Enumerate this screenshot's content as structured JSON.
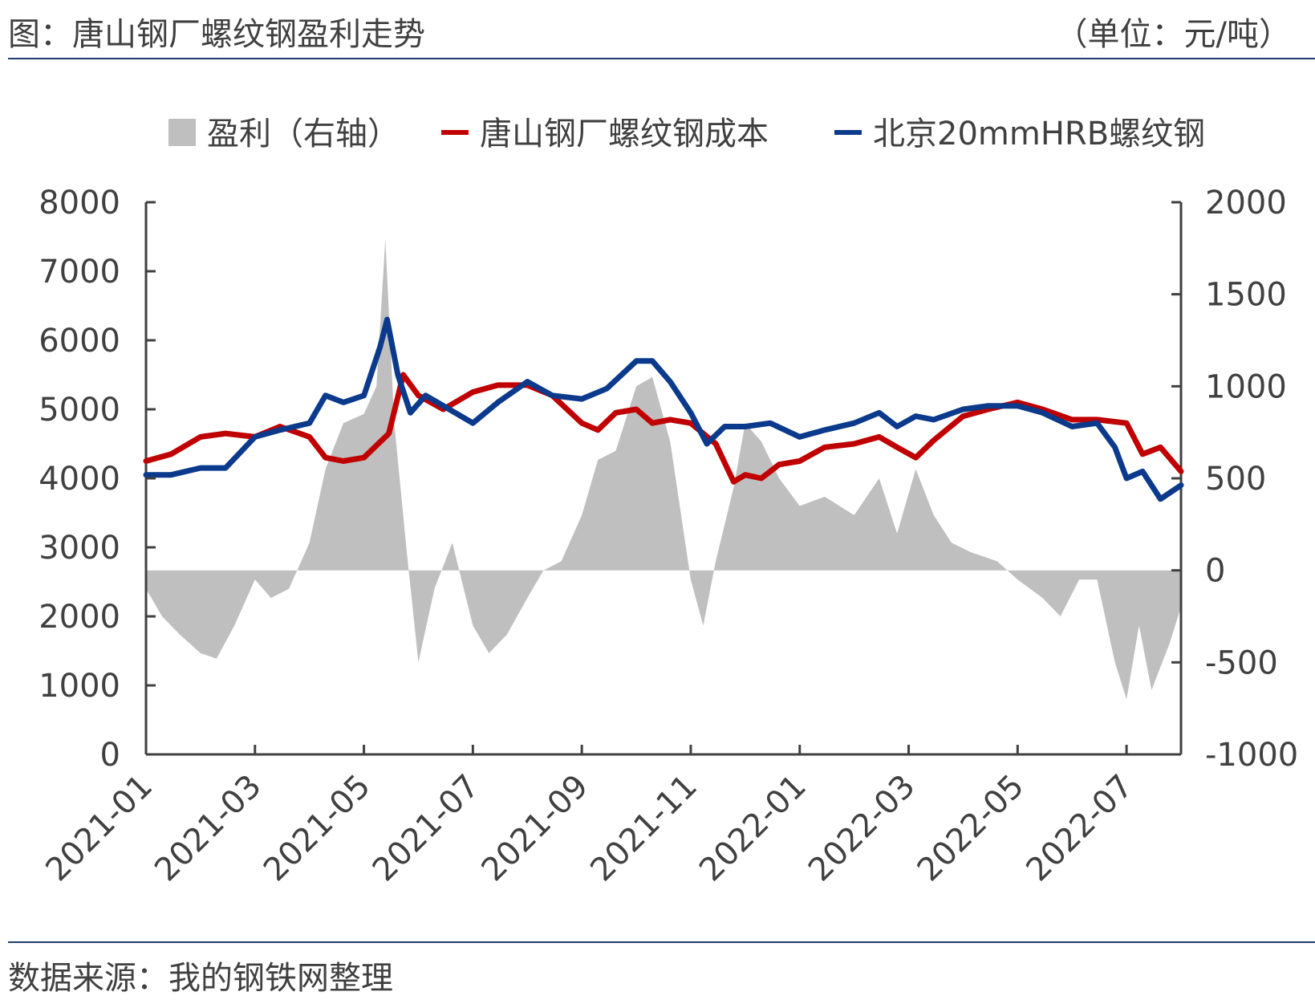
{
  "header": {
    "title": "图：唐山钢厂螺纹钢盈利走势",
    "unit": "（单位：元/吨）"
  },
  "footer": {
    "source": "数据来源：我的钢铁网整理"
  },
  "chart_data": {
    "type": "line",
    "left_axis": {
      "ylim": [
        0,
        8000
      ],
      "ticks": [
        "0",
        "1000",
        "2000",
        "3000",
        "4000",
        "5000",
        "6000",
        "7000",
        "8000"
      ]
    },
    "right_axis": {
      "ylim": [
        -1000,
        2000
      ],
      "ticks": [
        "-1000",
        "-500",
        "0",
        "500",
        "1000",
        "1500",
        "2000"
      ]
    },
    "x_ticks": [
      "2021-01",
      "2021-03",
      "2021-05",
      "2021-07",
      "2021-09",
      "2021-11",
      "2022-01",
      "2022-03",
      "2022-05",
      "2022-07"
    ],
    "x": [
      "2021-01",
      "2021-02",
      "2021-03",
      "2021-04",
      "2021-05",
      "2021-06",
      "2021-07",
      "2021-08",
      "2021-09",
      "2021-10",
      "2021-11",
      "2021-12",
      "2022-01",
      "2022-02",
      "2022-03",
      "2022-04",
      "2022-05",
      "2022-06",
      "2022-07",
      "2022-08"
    ],
    "legend": [
      {
        "name": "盈利（右轴）",
        "kind": "area",
        "color": "#bfbfbf"
      },
      {
        "name": "唐山钢厂螺纹钢成本",
        "kind": "line",
        "color": "#c00000"
      },
      {
        "name": "北京20mmHRB螺纹钢",
        "kind": "line",
        "color": "#0b3a8c"
      }
    ],
    "series": [
      {
        "name": "盈利（右轴）",
        "axis": "right",
        "type": "area",
        "color": "#bfbfbf",
        "points": [
          [
            "2021-01-01",
            -100
          ],
          [
            "2021-01-10",
            -250
          ],
          [
            "2021-01-20",
            -350
          ],
          [
            "2021-02-01",
            -450
          ],
          [
            "2021-02-10",
            -480
          ],
          [
            "2021-02-20",
            -300
          ],
          [
            "2021-03-01",
            -50
          ],
          [
            "2021-03-10",
            -150
          ],
          [
            "2021-03-20",
            -100
          ],
          [
            "2021-04-01",
            150
          ],
          [
            "2021-04-10",
            550
          ],
          [
            "2021-04-20",
            800
          ],
          [
            "2021-05-01",
            850
          ],
          [
            "2021-05-08",
            1000
          ],
          [
            "2021-05-13",
            1800
          ],
          [
            "2021-05-18",
            800
          ],
          [
            "2021-05-25",
            100
          ],
          [
            "2021-06-01",
            -500
          ],
          [
            "2021-06-10",
            -100
          ],
          [
            "2021-06-20",
            150
          ],
          [
            "2021-07-01",
            -300
          ],
          [
            "2021-07-10",
            -450
          ],
          [
            "2021-07-20",
            -350
          ],
          [
            "2021-08-01",
            -150
          ],
          [
            "2021-08-10",
            0
          ],
          [
            "2021-08-20",
            50
          ],
          [
            "2021-09-01",
            300
          ],
          [
            "2021-09-10",
            600
          ],
          [
            "2021-09-20",
            650
          ],
          [
            "2021-10-01",
            1000
          ],
          [
            "2021-10-10",
            1050
          ],
          [
            "2021-10-20",
            700
          ],
          [
            "2021-11-01",
            -50
          ],
          [
            "2021-11-08",
            -300
          ],
          [
            "2021-11-15",
            50
          ],
          [
            "2021-11-25",
            450
          ],
          [
            "2021-12-01",
            800
          ],
          [
            "2021-12-10",
            700
          ],
          [
            "2021-12-20",
            500
          ],
          [
            "2022-01-01",
            350
          ],
          [
            "2022-01-15",
            400
          ],
          [
            "2022-02-01",
            300
          ],
          [
            "2022-02-15",
            500
          ],
          [
            "2022-02-25",
            200
          ],
          [
            "2022-03-05",
            550
          ],
          [
            "2022-03-15",
            300
          ],
          [
            "2022-03-25",
            150
          ],
          [
            "2022-04-05",
            100
          ],
          [
            "2022-04-20",
            50
          ],
          [
            "2022-05-01",
            -50
          ],
          [
            "2022-05-15",
            -150
          ],
          [
            "2022-05-25",
            -250
          ],
          [
            "2022-06-05",
            -50
          ],
          [
            "2022-06-15",
            -50
          ],
          [
            "2022-06-25",
            -500
          ],
          [
            "2022-07-01",
            -700
          ],
          [
            "2022-07-08",
            -300
          ],
          [
            "2022-07-15",
            -650
          ],
          [
            "2022-07-25",
            -400
          ],
          [
            "2022-08-01",
            -200
          ]
        ]
      },
      {
        "name": "唐山钢厂螺纹钢成本",
        "axis": "left",
        "type": "line",
        "color": "#c00000",
        "points": [
          [
            "2021-01-01",
            4250
          ],
          [
            "2021-01-15",
            4350
          ],
          [
            "2021-02-01",
            4600
          ],
          [
            "2021-02-15",
            4650
          ],
          [
            "2021-03-01",
            4600
          ],
          [
            "2021-03-15",
            4750
          ],
          [
            "2021-04-01",
            4600
          ],
          [
            "2021-04-10",
            4300
          ],
          [
            "2021-04-20",
            4250
          ],
          [
            "2021-05-01",
            4300
          ],
          [
            "2021-05-15",
            4650
          ],
          [
            "2021-05-23",
            5500
          ],
          [
            "2021-06-01",
            5200
          ],
          [
            "2021-06-15",
            5000
          ],
          [
            "2021-07-01",
            5250
          ],
          [
            "2021-07-15",
            5350
          ],
          [
            "2021-08-01",
            5350
          ],
          [
            "2021-08-15",
            5200
          ],
          [
            "2021-09-01",
            4800
          ],
          [
            "2021-09-10",
            4700
          ],
          [
            "2021-09-20",
            4950
          ],
          [
            "2021-10-01",
            5000
          ],
          [
            "2021-10-10",
            4800
          ],
          [
            "2021-10-20",
            4850
          ],
          [
            "2021-11-01",
            4800
          ],
          [
            "2021-11-15",
            4500
          ],
          [
            "2021-11-25",
            3950
          ],
          [
            "2021-12-01",
            4050
          ],
          [
            "2021-12-10",
            4000
          ],
          [
            "2021-12-20",
            4200
          ],
          [
            "2022-01-01",
            4250
          ],
          [
            "2022-01-15",
            4450
          ],
          [
            "2022-02-01",
            4500
          ],
          [
            "2022-02-15",
            4600
          ],
          [
            "2022-02-25",
            4450
          ],
          [
            "2022-03-05",
            4300
          ],
          [
            "2022-03-15",
            4550
          ],
          [
            "2022-04-01",
            4900
          ],
          [
            "2022-04-15",
            5000
          ],
          [
            "2022-05-01",
            5100
          ],
          [
            "2022-05-15",
            5000
          ],
          [
            "2022-06-01",
            4850
          ],
          [
            "2022-06-15",
            4850
          ],
          [
            "2022-07-01",
            4800
          ],
          [
            "2022-07-10",
            4350
          ],
          [
            "2022-07-20",
            4450
          ],
          [
            "2022-08-01",
            4100
          ]
        ]
      },
      {
        "name": "北京20mmHRB螺纹钢",
        "axis": "left",
        "type": "line",
        "color": "#0b3a8c",
        "points": [
          [
            "2021-01-01",
            4050
          ],
          [
            "2021-01-15",
            4050
          ],
          [
            "2021-02-01",
            4150
          ],
          [
            "2021-02-15",
            4150
          ],
          [
            "2021-03-01",
            4600
          ],
          [
            "2021-03-15",
            4700
          ],
          [
            "2021-04-01",
            4800
          ],
          [
            "2021-04-10",
            5200
          ],
          [
            "2021-04-20",
            5100
          ],
          [
            "2021-05-01",
            5200
          ],
          [
            "2021-05-10",
            5900
          ],
          [
            "2021-05-14",
            6300
          ],
          [
            "2021-05-20",
            5500
          ],
          [
            "2021-05-27",
            4950
          ],
          [
            "2021-06-05",
            5200
          ],
          [
            "2021-06-15",
            5050
          ],
          [
            "2021-07-01",
            4800
          ],
          [
            "2021-07-15",
            5100
          ],
          [
            "2021-08-01",
            5400
          ],
          [
            "2021-08-15",
            5200
          ],
          [
            "2021-09-01",
            5150
          ],
          [
            "2021-09-15",
            5300
          ],
          [
            "2021-10-01",
            5700
          ],
          [
            "2021-10-10",
            5700
          ],
          [
            "2021-10-20",
            5400
          ],
          [
            "2021-11-01",
            4950
          ],
          [
            "2021-11-10",
            4500
          ],
          [
            "2021-11-20",
            4750
          ],
          [
            "2021-12-01",
            4750
          ],
          [
            "2021-12-15",
            4800
          ],
          [
            "2022-01-01",
            4600
          ],
          [
            "2022-01-15",
            4700
          ],
          [
            "2022-02-01",
            4800
          ],
          [
            "2022-02-15",
            4950
          ],
          [
            "2022-02-25",
            4750
          ],
          [
            "2022-03-05",
            4900
          ],
          [
            "2022-03-15",
            4850
          ],
          [
            "2022-04-01",
            5000
          ],
          [
            "2022-04-15",
            5050
          ],
          [
            "2022-05-01",
            5050
          ],
          [
            "2022-05-15",
            4950
          ],
          [
            "2022-06-01",
            4750
          ],
          [
            "2022-06-15",
            4800
          ],
          [
            "2022-06-25",
            4450
          ],
          [
            "2022-07-01",
            4000
          ],
          [
            "2022-07-10",
            4100
          ],
          [
            "2022-07-20",
            3700
          ],
          [
            "2022-08-01",
            3900
          ]
        ]
      }
    ]
  }
}
